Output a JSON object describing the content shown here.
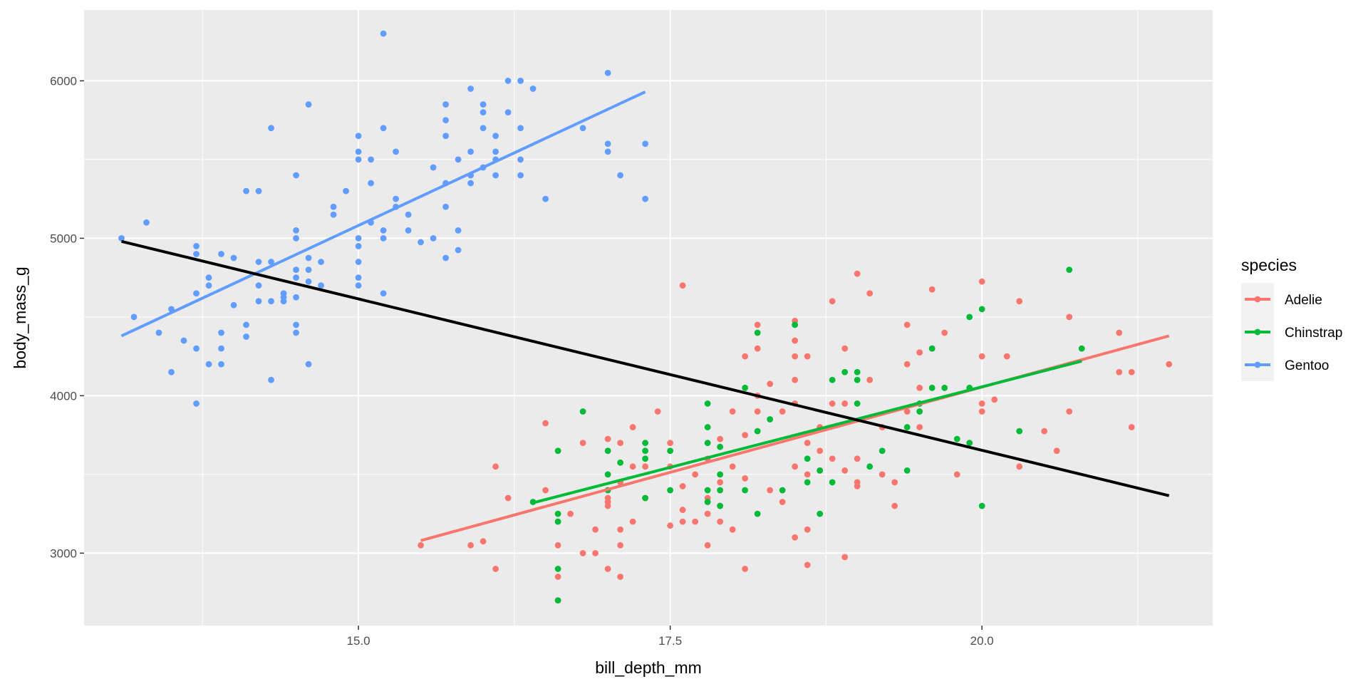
{
  "chart_data": {
    "type": "scatter",
    "xlabel": "bill_depth_mm",
    "ylabel": "body_mass_g",
    "xlim": [
      12.8,
      21.85
    ],
    "ylim": [
      2540,
      6450
    ],
    "x_ticks": [
      15.0,
      17.5,
      20.0
    ],
    "x_tick_labels": [
      "15.0",
      "17.5",
      "20.0"
    ],
    "y_ticks": [
      3000,
      4000,
      5000,
      6000
    ],
    "y_tick_labels": [
      "3000",
      "4000",
      "5000",
      "6000"
    ],
    "grid": true,
    "legend": {
      "title": "species",
      "placement": "right"
    },
    "series": [
      {
        "name": "Adelie",
        "color": "#F8766D",
        "points": [
          [
            15.5,
            3050
          ],
          [
            15.9,
            3050
          ],
          [
            16.0,
            3075
          ],
          [
            16.1,
            3550
          ],
          [
            16.1,
            2900
          ],
          [
            16.2,
            3350
          ],
          [
            16.5,
            3825
          ],
          [
            16.5,
            3400
          ],
          [
            16.6,
            3050
          ],
          [
            16.6,
            2850
          ],
          [
            16.7,
            3250
          ],
          [
            16.8,
            3700
          ],
          [
            16.8,
            3000
          ],
          [
            16.9,
            3150
          ],
          [
            16.9,
            3000
          ],
          [
            17.0,
            3725
          ],
          [
            17.0,
            3350
          ],
          [
            17.0,
            3325
          ],
          [
            17.0,
            3300
          ],
          [
            17.0,
            2900
          ],
          [
            17.1,
            3700
          ],
          [
            17.1,
            3450
          ],
          [
            17.1,
            3150
          ],
          [
            17.1,
            3050
          ],
          [
            17.1,
            2850
          ],
          [
            17.2,
            3800
          ],
          [
            17.2,
            3550
          ],
          [
            17.2,
            3200
          ],
          [
            17.3,
            3550
          ],
          [
            17.3,
            3350
          ],
          [
            17.4,
            3900
          ],
          [
            17.5,
            3700
          ],
          [
            17.5,
            3550
          ],
          [
            17.5,
            3175
          ],
          [
            17.6,
            4700
          ],
          [
            17.6,
            3425
          ],
          [
            17.6,
            3275
          ],
          [
            17.6,
            3200
          ],
          [
            17.7,
            3500
          ],
          [
            17.7,
            3200
          ],
          [
            17.8,
            3600
          ],
          [
            17.8,
            3350
          ],
          [
            17.8,
            3250
          ],
          [
            17.8,
            3050
          ],
          [
            17.9,
            3725
          ],
          [
            17.9,
            3450
          ],
          [
            17.9,
            3300
          ],
          [
            17.9,
            3200
          ],
          [
            18.0,
            3550
          ],
          [
            18.0,
            3150
          ],
          [
            18.0,
            3900
          ],
          [
            18.1,
            4250
          ],
          [
            18.1,
            3750
          ],
          [
            18.1,
            3475
          ],
          [
            18.1,
            2900
          ],
          [
            18.2,
            4450
          ],
          [
            18.2,
            4300
          ],
          [
            18.2,
            3900
          ],
          [
            18.2,
            4000
          ],
          [
            18.3,
            4075
          ],
          [
            18.3,
            3400
          ],
          [
            18.4,
            3900
          ],
          [
            18.4,
            3325
          ],
          [
            18.5,
            4475
          ],
          [
            18.5,
            4350
          ],
          [
            18.5,
            4250
          ],
          [
            18.5,
            4100
          ],
          [
            18.5,
            3950
          ],
          [
            18.5,
            3550
          ],
          [
            18.5,
            3100
          ],
          [
            18.6,
            4250
          ],
          [
            18.6,
            3700
          ],
          [
            18.6,
            3500
          ],
          [
            18.6,
            3150
          ],
          [
            18.6,
            2925
          ],
          [
            18.7,
            3800
          ],
          [
            18.7,
            3650
          ],
          [
            18.7,
            3525
          ],
          [
            18.8,
            4600
          ],
          [
            18.8,
            3950
          ],
          [
            18.8,
            3600
          ],
          [
            18.9,
            4300
          ],
          [
            18.9,
            3950
          ],
          [
            18.9,
            3525
          ],
          [
            18.9,
            2975
          ],
          [
            19.0,
            4775
          ],
          [
            19.0,
            3600
          ],
          [
            19.0,
            3450
          ],
          [
            19.0,
            3425
          ],
          [
            19.1,
            4650
          ],
          [
            19.1,
            4100
          ],
          [
            19.2,
            3800
          ],
          [
            19.2,
            3500
          ],
          [
            19.3,
            3450
          ],
          [
            19.3,
            3300
          ],
          [
            19.4,
            4450
          ],
          [
            19.4,
            4200
          ],
          [
            19.4,
            3900
          ],
          [
            19.5,
            4275
          ],
          [
            19.5,
            4050
          ],
          [
            19.5,
            3800
          ],
          [
            19.6,
            4675
          ],
          [
            19.7,
            4400
          ],
          [
            19.8,
            3500
          ],
          [
            20.0,
            4725
          ],
          [
            20.0,
            4250
          ],
          [
            20.0,
            3950
          ],
          [
            20.0,
            3900
          ],
          [
            20.1,
            3975
          ],
          [
            20.2,
            4250
          ],
          [
            20.3,
            4600
          ],
          [
            20.3,
            3550
          ],
          [
            20.5,
            3775
          ],
          [
            20.6,
            3650
          ],
          [
            20.7,
            4500
          ],
          [
            20.7,
            3900
          ],
          [
            21.1,
            4400
          ],
          [
            21.1,
            4150
          ],
          [
            21.2,
            4150
          ],
          [
            21.2,
            3800
          ],
          [
            21.5,
            4200
          ]
        ],
        "fit": [
          [
            15.5,
            3080
          ],
          [
            21.5,
            4380
          ]
        ]
      },
      {
        "name": "Chinstrap",
        "color": "#00BA38",
        "points": [
          [
            16.4,
            3325
          ],
          [
            16.6,
            3650
          ],
          [
            16.6,
            3250
          ],
          [
            16.6,
            3200
          ],
          [
            16.6,
            2900
          ],
          [
            16.6,
            2700
          ],
          [
            16.8,
            3900
          ],
          [
            17.0,
            3650
          ],
          [
            17.0,
            3500
          ],
          [
            17.0,
            3400
          ],
          [
            17.1,
            3575
          ],
          [
            17.3,
            3700
          ],
          [
            17.3,
            3650
          ],
          [
            17.3,
            3600
          ],
          [
            17.3,
            3350
          ],
          [
            17.5,
            3650
          ],
          [
            17.5,
            3400
          ],
          [
            17.8,
            3950
          ],
          [
            17.8,
            3800
          ],
          [
            17.8,
            3700
          ],
          [
            17.8,
            3400
          ],
          [
            17.8,
            3325
          ],
          [
            17.9,
            3675
          ],
          [
            17.9,
            3500
          ],
          [
            17.9,
            3400
          ],
          [
            17.9,
            3300
          ],
          [
            18.1,
            4050
          ],
          [
            18.1,
            3400
          ],
          [
            18.2,
            4400
          ],
          [
            18.2,
            3775
          ],
          [
            18.2,
            3250
          ],
          [
            18.3,
            3850
          ],
          [
            18.4,
            3400
          ],
          [
            18.5,
            4450
          ],
          [
            18.6,
            3600
          ],
          [
            18.6,
            3450
          ],
          [
            18.7,
            3250
          ],
          [
            18.7,
            3525
          ],
          [
            18.8,
            4100
          ],
          [
            18.8,
            3450
          ],
          [
            18.9,
            4150
          ],
          [
            19.0,
            4150
          ],
          [
            19.0,
            4100
          ],
          [
            19.0,
            3950
          ],
          [
            19.1,
            3550
          ],
          [
            19.2,
            3650
          ],
          [
            19.4,
            3800
          ],
          [
            19.4,
            3525
          ],
          [
            19.5,
            3900
          ],
          [
            19.5,
            3950
          ],
          [
            19.6,
            4300
          ],
          [
            19.6,
            4050
          ],
          [
            19.7,
            4050
          ],
          [
            19.8,
            3725
          ],
          [
            19.9,
            4500
          ],
          [
            19.9,
            4050
          ],
          [
            19.9,
            3700
          ],
          [
            20.0,
            4550
          ],
          [
            20.0,
            3300
          ],
          [
            20.3,
            3775
          ],
          [
            20.7,
            4800
          ],
          [
            20.8,
            4300
          ]
        ],
        "fit": [
          [
            16.4,
            3320
          ],
          [
            20.8,
            4220
          ]
        ]
      },
      {
        "name": "Gentoo",
        "color": "#619CFF",
        "points": [
          [
            13.1,
            5000
          ],
          [
            13.2,
            4500
          ],
          [
            13.3,
            5100
          ],
          [
            13.4,
            4400
          ],
          [
            13.5,
            4550
          ],
          [
            13.5,
            4150
          ],
          [
            13.6,
            4350
          ],
          [
            13.7,
            4950
          ],
          [
            13.7,
            4900
          ],
          [
            13.7,
            4650
          ],
          [
            13.7,
            4300
          ],
          [
            13.7,
            3950
          ],
          [
            13.8,
            4750
          ],
          [
            13.8,
            4700
          ],
          [
            13.8,
            4200
          ],
          [
            13.9,
            4900
          ],
          [
            13.9,
            4400
          ],
          [
            13.9,
            4300
          ],
          [
            13.9,
            4200
          ],
          [
            14.0,
            4875
          ],
          [
            14.0,
            4575
          ],
          [
            14.1,
            5300
          ],
          [
            14.1,
            4450
          ],
          [
            14.1,
            4375
          ],
          [
            14.2,
            5300
          ],
          [
            14.2,
            4850
          ],
          [
            14.2,
            4700
          ],
          [
            14.2,
            4600
          ],
          [
            14.3,
            5700
          ],
          [
            14.3,
            4850
          ],
          [
            14.3,
            4600
          ],
          [
            14.3,
            4100
          ],
          [
            14.4,
            4650
          ],
          [
            14.4,
            4625
          ],
          [
            14.4,
            4600
          ],
          [
            14.5,
            5400
          ],
          [
            14.5,
            5050
          ],
          [
            14.5,
            5000
          ],
          [
            14.5,
            4800
          ],
          [
            14.5,
            4750
          ],
          [
            14.5,
            4625
          ],
          [
            14.5,
            4450
          ],
          [
            14.5,
            4400
          ],
          [
            14.6,
            5850
          ],
          [
            14.6,
            4875
          ],
          [
            14.6,
            4800
          ],
          [
            14.6,
            4725
          ],
          [
            14.6,
            4200
          ],
          [
            14.7,
            4850
          ],
          [
            14.7,
            4700
          ],
          [
            14.8,
            5200
          ],
          [
            14.8,
            5150
          ],
          [
            14.9,
            5300
          ],
          [
            15.0,
            5650
          ],
          [
            15.0,
            5550
          ],
          [
            15.0,
            5500
          ],
          [
            15.0,
            5000
          ],
          [
            15.0,
            4950
          ],
          [
            15.0,
            4850
          ],
          [
            15.0,
            4750
          ],
          [
            15.0,
            4700
          ],
          [
            15.1,
            5500
          ],
          [
            15.1,
            5350
          ],
          [
            15.1,
            5100
          ],
          [
            15.2,
            6300
          ],
          [
            15.2,
            5700
          ],
          [
            15.2,
            5050
          ],
          [
            15.2,
            5000
          ],
          [
            15.2,
            4650
          ],
          [
            15.3,
            5550
          ],
          [
            15.3,
            5250
          ],
          [
            15.3,
            5200
          ],
          [
            15.4,
            5150
          ],
          [
            15.4,
            5050
          ],
          [
            15.5,
            4975
          ],
          [
            15.6,
            5450
          ],
          [
            15.6,
            5000
          ],
          [
            15.7,
            5850
          ],
          [
            15.7,
            5750
          ],
          [
            15.7,
            5650
          ],
          [
            15.7,
            5350
          ],
          [
            15.7,
            5200
          ],
          [
            15.7,
            4875
          ],
          [
            15.8,
            5500
          ],
          [
            15.8,
            5050
          ],
          [
            15.8,
            4925
          ],
          [
            15.9,
            5950
          ],
          [
            15.9,
            5550
          ],
          [
            15.9,
            5400
          ],
          [
            15.9,
            5350
          ],
          [
            16.0,
            5850
          ],
          [
            16.0,
            5800
          ],
          [
            16.0,
            5700
          ],
          [
            16.0,
            5450
          ],
          [
            16.1,
            5650
          ],
          [
            16.1,
            5550
          ],
          [
            16.1,
            5500
          ],
          [
            16.1,
            5400
          ],
          [
            16.2,
            6000
          ],
          [
            16.2,
            5800
          ],
          [
            16.3,
            6000
          ],
          [
            16.3,
            5700
          ],
          [
            16.3,
            5500
          ],
          [
            16.3,
            5400
          ],
          [
            16.4,
            5950
          ],
          [
            16.5,
            5250
          ],
          [
            16.8,
            5700
          ],
          [
            17.0,
            6050
          ],
          [
            17.0,
            5600
          ],
          [
            17.0,
            5550
          ],
          [
            17.1,
            5400
          ],
          [
            17.3,
            5600
          ],
          [
            17.3,
            5250
          ]
        ],
        "fit": [
          [
            13.1,
            4380
          ],
          [
            17.3,
            5930
          ]
        ]
      }
    ],
    "overall_fit": {
      "color": "#000000",
      "points": [
        [
          13.1,
          4980
        ],
        [
          21.5,
          3365
        ]
      ]
    }
  }
}
